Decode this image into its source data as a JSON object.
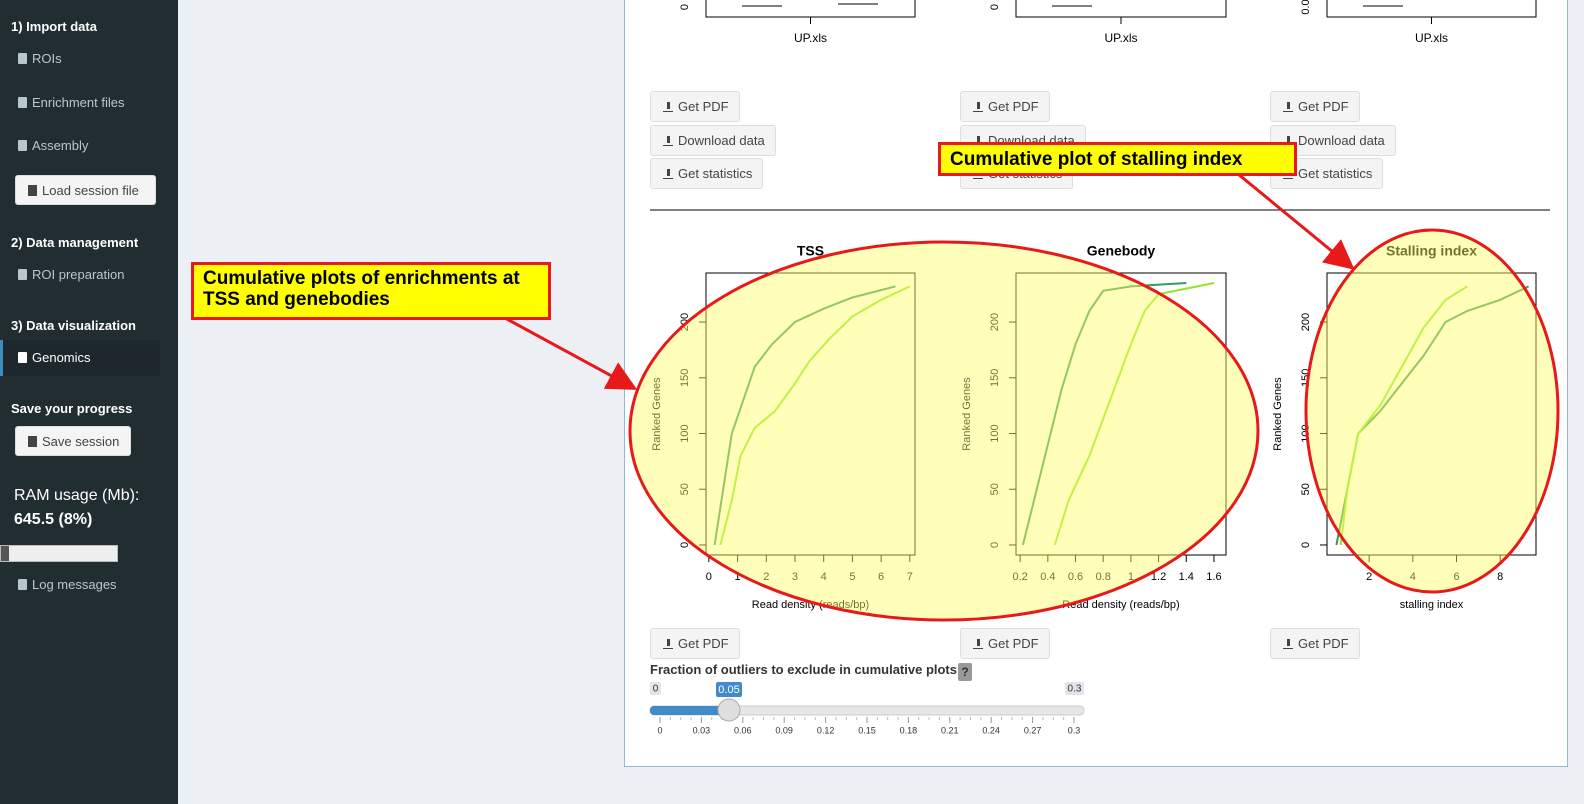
{
  "sidebar": {
    "import_header": "1) Import data",
    "rois": "ROIs",
    "enrichment_files": "Enrichment files",
    "assembly": "Assembly",
    "load_session": "Load session file",
    "data_management_header": "2) Data management",
    "roi_preparation": "ROI preparation",
    "visualization_header": "3) Data visualization",
    "genomics": "Genomics",
    "save_header": "Save your progress",
    "save_session": "Save session",
    "ram_label": "RAM usage (Mb):",
    "ram_value": "645.5 (8%)",
    "log_messages": "Log messages"
  },
  "top_plots": [
    {
      "y_tick": "0",
      "x_label": "UP.xls"
    },
    {
      "y_tick": "0",
      "x_label": "UP.xls"
    },
    {
      "y_tick": "0.0",
      "x_label": "UP.xls"
    }
  ],
  "buttons_top": [
    [
      "Get PDF",
      "Download data",
      "Get statistics"
    ],
    [
      "Get PDF",
      "Download data",
      "Get statistics"
    ],
    [
      "Get PDF",
      "Download data",
      "Get statistics"
    ]
  ],
  "plots": [
    {
      "title": "TSS",
      "x_label": "Read density (reads/bp)",
      "y_label": "Ranked Genes",
      "xlim": [
        -0.1,
        7.18
      ],
      "ylim": [
        -9,
        244
      ],
      "xticks": [
        0,
        1,
        2,
        3,
        4,
        5,
        6,
        7
      ],
      "yticks": [
        0,
        50,
        100,
        150,
        200
      ],
      "series": [
        {
          "color": "#3a9a5e",
          "x": [
            0.2,
            0.5,
            0.8,
            1.2,
            1.6,
            2.2,
            3,
            4,
            5,
            6.5
          ],
          "y": [
            0,
            50,
            100,
            130,
            160,
            180,
            200,
            212,
            222,
            232
          ]
        },
        {
          "color": "#8ee62a",
          "x": [
            0.4,
            0.8,
            1.1,
            1.6,
            2.3,
            3,
            3.5,
            4.2,
            5,
            6,
            7
          ],
          "y": [
            0,
            40,
            80,
            105,
            120,
            145,
            165,
            185,
            205,
            220,
            232
          ]
        }
      ]
    },
    {
      "title": "Genebody",
      "x_label": "Read density (reads/bp)",
      "y_label": "Ranked Genes",
      "xlim": [
        0.17,
        1.687
      ],
      "ylim": [
        -9,
        244
      ],
      "xticks": [
        0.2,
        0.4,
        0.6,
        0.8,
        1,
        1.2,
        1.4,
        1.6
      ],
      "yticks": [
        0,
        50,
        100,
        150,
        200
      ],
      "series": [
        {
          "color": "#3a9a5e",
          "x": [
            0.22,
            0.3,
            0.4,
            0.5,
            0.6,
            0.7,
            0.8,
            1,
            1.4
          ],
          "y": [
            0,
            40,
            90,
            140,
            180,
            210,
            228,
            232,
            235
          ]
        },
        {
          "color": "#8ee62a",
          "x": [
            0.45,
            0.55,
            0.7,
            0.85,
            1,
            1.1,
            1.2,
            1.6
          ],
          "y": [
            0,
            40,
            80,
            130,
            180,
            210,
            225,
            235
          ]
        }
      ]
    },
    {
      "title": "Stalling index",
      "x_label": "stalling index",
      "y_label": "Ranked Genes",
      "xlim": [
        0.07,
        9.64
      ],
      "ylim": [
        -9,
        244
      ],
      "xticks": [
        2,
        4,
        6,
        8
      ],
      "yticks": [
        0,
        50,
        100,
        150,
        200
      ],
      "series": [
        {
          "color": "#3a9a5e",
          "x": [
            0.5,
            1,
            1.5,
            2.5,
            3.5,
            4.5,
            5.5,
            6.5,
            8,
            9.3
          ],
          "y": [
            0,
            50,
            100,
            120,
            145,
            170,
            200,
            210,
            220,
            232
          ]
        },
        {
          "color": "#8ee62a",
          "x": [
            0.7,
            1,
            1.5,
            2.5,
            3.5,
            4.5,
            5.5,
            6.5
          ],
          "y": [
            0,
            50,
            100,
            125,
            160,
            195,
            220,
            232
          ]
        }
      ]
    }
  ],
  "buttons_bottom": [
    "Get PDF",
    "Get PDF",
    "Get PDF"
  ],
  "slider": {
    "label": "Fraction of outliers to exclude in cumulative plots:",
    "help": "?",
    "min": 0,
    "max": 0.3,
    "value": 0.05,
    "ticks": [
      0,
      0.03,
      0.06,
      0.09,
      0.12,
      0.15,
      0.18,
      0.21,
      0.24,
      0.27,
      0.3
    ]
  },
  "annotations": [
    "Cumulative plots of enrichments at TSS and genebodies",
    "Cumulative plot of stalling index"
  ]
}
